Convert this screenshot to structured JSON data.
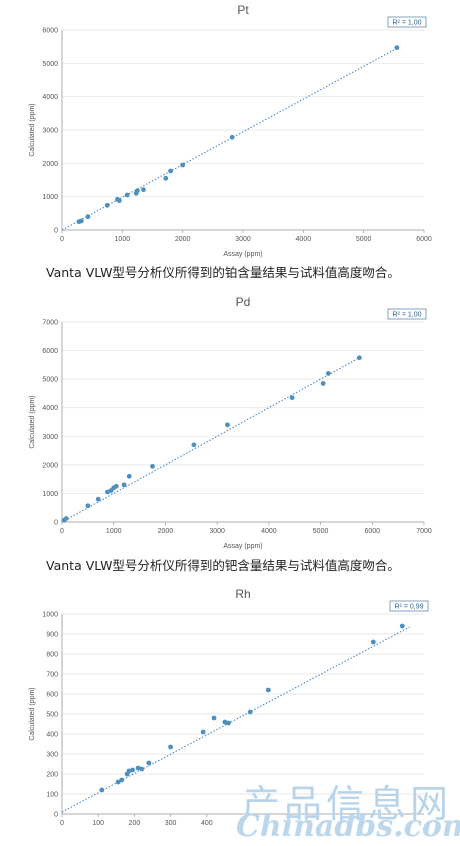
{
  "charts": [
    {
      "type": "scatter",
      "title": "Pt",
      "xlabel": "Assay (ppm)",
      "ylabel": "Calculated (ppm)",
      "xlim": [
        0,
        6000
      ],
      "ylim": [
        0,
        6000
      ],
      "xticks": [
        0,
        1000,
        2000,
        3000,
        4000,
        5000,
        6000
      ],
      "yticks": [
        0,
        1000,
        2000,
        3000,
        4000,
        5000,
        6000
      ],
      "r2_label": "R² = 1,00",
      "grid": true,
      "point_color": "#4f8fc0",
      "trend_color": "#3a7fc1",
      "trendline": [
        [
          0,
          0
        ],
        [
          5550,
          5450
        ]
      ],
      "points": [
        [
          280,
          250
        ],
        [
          320,
          270
        ],
        [
          430,
          400
        ],
        [
          750,
          740
        ],
        [
          920,
          920
        ],
        [
          950,
          880
        ],
        [
          1080,
          1050
        ],
        [
          1230,
          1100
        ],
        [
          1250,
          1180
        ],
        [
          1350,
          1210
        ],
        [
          1720,
          1550
        ],
        [
          1800,
          1770
        ],
        [
          2000,
          1950
        ],
        [
          2820,
          2780
        ],
        [
          5550,
          5470
        ]
      ]
    },
    {
      "type": "scatter",
      "title": "Pd",
      "xlabel": "Assay (ppm)",
      "ylabel": "Calculated (ppm)",
      "xlim": [
        0,
        7000
      ],
      "ylim": [
        0,
        7000
      ],
      "xticks": [
        0,
        1000,
        2000,
        3000,
        4000,
        5000,
        6000,
        7000
      ],
      "yticks": [
        0,
        1000,
        2000,
        3000,
        4000,
        5000,
        6000,
        7000
      ],
      "r2_label": "R² = 1,00",
      "grid": true,
      "point_color": "#4f8fc0",
      "trend_color": "#3a7fc1",
      "trendline": [
        [
          0,
          0
        ],
        [
          5750,
          5750
        ]
      ],
      "points": [
        [
          40,
          60
        ],
        [
          80,
          120
        ],
        [
          500,
          570
        ],
        [
          700,
          800
        ],
        [
          880,
          1050
        ],
        [
          950,
          1100
        ],
        [
          1000,
          1200
        ],
        [
          1050,
          1250
        ],
        [
          1200,
          1300
        ],
        [
          1300,
          1600
        ],
        [
          1750,
          1950
        ],
        [
          2550,
          2700
        ],
        [
          3200,
          3400
        ],
        [
          4450,
          4350
        ],
        [
          5050,
          4850
        ],
        [
          5150,
          5200
        ],
        [
          5750,
          5750
        ]
      ]
    },
    {
      "type": "scatter",
      "title": "Rh",
      "xlabel": "",
      "ylabel": "Calculated (ppm)",
      "xlim": [
        0,
        1000
      ],
      "ylim": [
        0,
        1000
      ],
      "xticks": [
        0,
        100,
        200,
        300,
        400
      ],
      "yticks": [
        0,
        100,
        200,
        300,
        400,
        500,
        600,
        700,
        800,
        900,
        1000
      ],
      "r2_label": "R² = 0,99",
      "grid": true,
      "point_color": "#4f8fc0",
      "trend_color": "#3a7fc1",
      "trendline": [
        [
          0,
          10
        ],
        [
          960,
          935
        ]
      ],
      "points": [
        [
          110,
          120
        ],
        [
          155,
          160
        ],
        [
          165,
          170
        ],
        [
          180,
          200
        ],
        [
          185,
          215
        ],
        [
          195,
          220
        ],
        [
          210,
          230
        ],
        [
          220,
          225
        ],
        [
          240,
          255
        ],
        [
          300,
          335
        ],
        [
          390,
          410
        ],
        [
          420,
          480
        ],
        [
          450,
          460
        ],
        [
          460,
          455
        ],
        [
          520,
          510
        ],
        [
          570,
          620
        ],
        [
          860,
          860
        ],
        [
          940,
          940
        ]
      ]
    }
  ],
  "captions": [
    "Vanta VLW型号分析仪所得到的铂含量结果与试料值高度吻合。",
    "Vanta VLW型号分析仪所得到的钯含量结果与试料值高度吻合。"
  ],
  "watermark": {
    "line1": "产品信息网",
    "line2": "Chinadbs.com"
  }
}
